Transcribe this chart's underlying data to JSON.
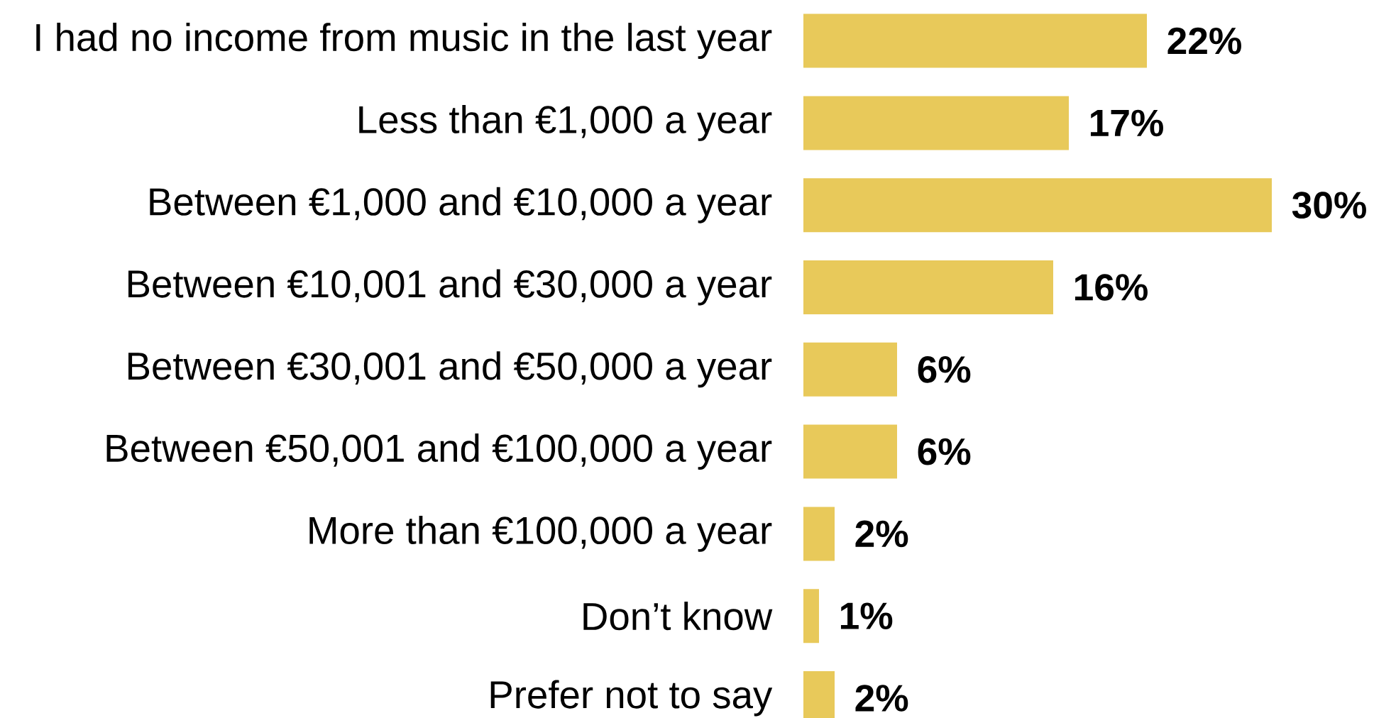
{
  "chart_data": {
    "type": "bar",
    "orientation": "horizontal",
    "categories": [
      "I had no income from music in the last year",
      "Less than €1,000 a year",
      "Between €1,000 and €10,000 a year",
      "Between €10,001 and €30,000 a year",
      "Between €30,001 and €50,000 a year",
      "Between €50,001 and €100,000 a year",
      "More than €100,000 a year",
      "Don’t know",
      "Prefer not to say"
    ],
    "values": [
      22,
      17,
      30,
      16,
      6,
      6,
      2,
      1,
      2
    ],
    "value_labels": [
      "22%",
      "17%",
      "30%",
      "16%",
      "6%",
      "6%",
      "2%",
      "1%",
      "2%"
    ],
    "color": "#e8c95a"
  }
}
